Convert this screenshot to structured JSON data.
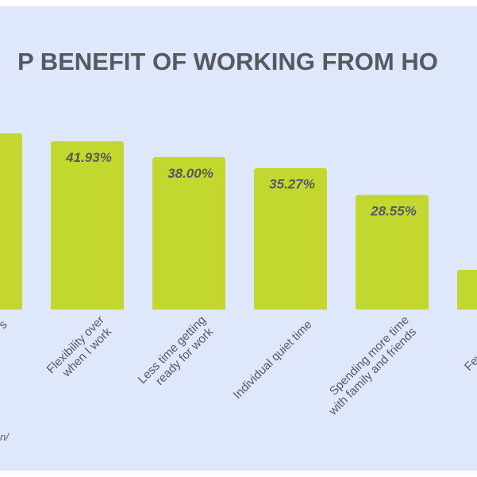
{
  "chart_data": {
    "type": "bar",
    "title": "P BENEFIT OF WORKING FROM HO",
    "categories": [
      "s",
      "Flexibility over\nwhen I work",
      "Less time getting\nready for work",
      "Individual quiet time",
      "Spending more time\nwith family and friends",
      "Fewer meeti"
    ],
    "values": [
      43.9,
      41.93,
      38.0,
      35.27,
      28.55,
      9.9
    ],
    "value_labels": [
      null,
      "41.93%",
      "38.00%",
      "35.27%",
      "28.55%",
      null
    ],
    "color": "#c3d82f",
    "ylim": [
      0,
      45
    ],
    "source": "n/"
  }
}
